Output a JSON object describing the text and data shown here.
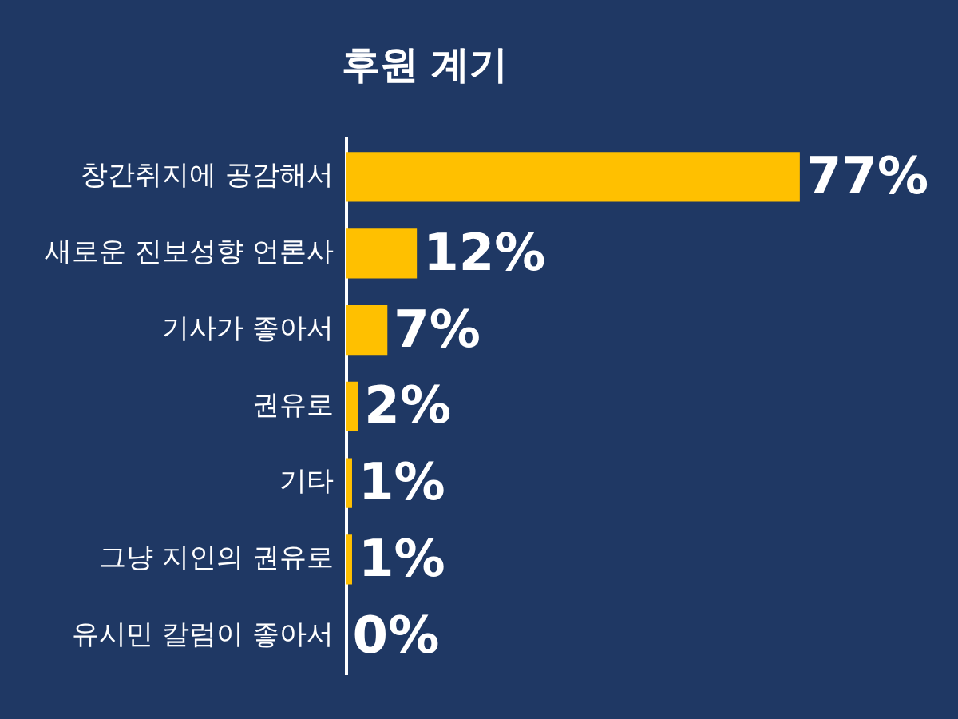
{
  "chart_data": {
    "type": "bar",
    "orientation": "horizontal",
    "title": "후원 계기",
    "categories": [
      "창간취지에 공감해서",
      "새로운 진보성향 언론사",
      "기사가 좋아서",
      "권유로",
      "기타",
      "그냥 지인의 권유로",
      "유시민 칼럼이 좋아서"
    ],
    "values": [
      77,
      12,
      7,
      2,
      1,
      1,
      0
    ],
    "value_labels": [
      "77%",
      "12%",
      "7%",
      "2%",
      "1%",
      "1%",
      "0%"
    ],
    "color": "#ffc000",
    "grid": false,
    "legend": false
  }
}
